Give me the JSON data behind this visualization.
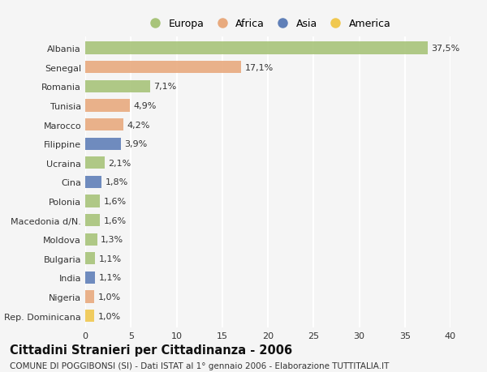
{
  "categories": [
    "Albania",
    "Senegal",
    "Romania",
    "Tunisia",
    "Marocco",
    "Filippine",
    "Ucraina",
    "Cina",
    "Polonia",
    "Macedonia d/N.",
    "Moldova",
    "Bulgaria",
    "India",
    "Nigeria",
    "Rep. Dominicana"
  ],
  "values": [
    37.5,
    17.1,
    7.1,
    4.9,
    4.2,
    3.9,
    2.1,
    1.8,
    1.6,
    1.6,
    1.3,
    1.1,
    1.1,
    1.0,
    1.0
  ],
  "labels": [
    "37,5%",
    "17,1%",
    "7,1%",
    "4,9%",
    "4,2%",
    "3,9%",
    "2,1%",
    "1,8%",
    "1,6%",
    "1,6%",
    "1,3%",
    "1,1%",
    "1,1%",
    "1,0%",
    "1,0%"
  ],
  "colors": [
    "#a8c47a",
    "#e8aa7e",
    "#a8c47a",
    "#e8aa7e",
    "#e8aa7e",
    "#6080b8",
    "#a8c47a",
    "#6080b8",
    "#a8c47a",
    "#a8c47a",
    "#a8c47a",
    "#a8c47a",
    "#6080b8",
    "#e8aa7e",
    "#f0c850"
  ],
  "legend_labels": [
    "Europa",
    "Africa",
    "Asia",
    "America"
  ],
  "legend_colors": [
    "#a8c47a",
    "#e8aa7e",
    "#6080b8",
    "#f0c850"
  ],
  "xlim": [
    0,
    40
  ],
  "xticks": [
    0,
    5,
    10,
    15,
    20,
    25,
    30,
    35,
    40
  ],
  "title": "Cittadini Stranieri per Cittadinanza - 2006",
  "subtitle": "COMUNE DI POGGIBONSI (SI) - Dati ISTAT al 1° gennaio 2006 - Elaborazione TUTTITALIA.IT",
  "bg_color": "#f5f5f5",
  "bar_height": 0.65,
  "grid_color": "#ffffff",
  "label_fontsize": 8,
  "tick_fontsize": 8,
  "title_fontsize": 10.5,
  "subtitle_fontsize": 7.5
}
